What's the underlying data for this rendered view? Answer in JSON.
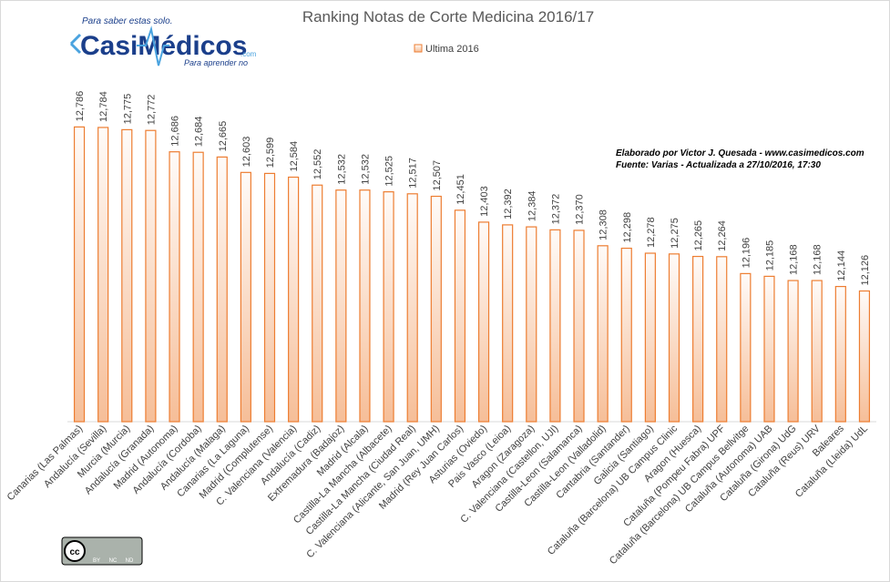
{
  "chart_data": {
    "type": "bar",
    "title": "Ranking Notas de Corte Medicina 2016/17",
    "annotations": [
      "Elaborado por Victor J. Quesada - www.casimedicos.com",
      "Fuente:  Varias - Actualizada a 27/10/2016, 17:30"
    ],
    "categories": [
      "Canarias (Las Palmas)",
      "Andalucía (Sevilla)",
      "Murcia (Murcia)",
      "Andalucía (Granada)",
      "Madrid (Autonoma)",
      "Andalucía (Cordoba)",
      "Andalucía (Malaga)",
      "Canarias (La Laguna)",
      "Madrid (Complutense)",
      "C. Valenciana (Valencia)",
      "Andalucía (Cadiz)",
      "Extremadura (Badajoz)",
      "Madrid (Alcala)",
      "Castilla-La Mancha (Albacete)",
      "Castilla-La Mancha (Ciudad Real)",
      "C. Valenciana (Alicante, San Juan, UMH)",
      "Madrid (Rey Juan Carlos)",
      "Asturias (Oviedo)",
      "Pais Vasco (Leioa)",
      "Aragon (Zaragoza)",
      "C. Valenciana (Castellon, UJI)",
      "Castilla-Leon (Salamanca)",
      "Castilla-Leon (Valladolid)",
      "Cantabria (Santander)",
      "Galicia (Santiago)",
      "Cataluña (Barcelona) UB Campus Clinic",
      "Aragon (Huesca)",
      "Cataluña (Pompeu Fabra) UPF",
      "Cataluña (Barcelona) UB Campus Bellvitge",
      "Cataluña (Autonoma) UAB",
      "Cataluña (Girona) UdG",
      "Cataluña (Reus) URV",
      "Baleares",
      "Cataluña (Lleida) UdL"
    ],
    "series": [
      {
        "name": "Ultima 2016",
        "color": "#ed7d31",
        "values": [
          12.786,
          12.784,
          12.775,
          12.772,
          12.686,
          12.684,
          12.665,
          12.603,
          12.599,
          12.584,
          12.552,
          12.532,
          12.532,
          12.525,
          12.517,
          12.507,
          12.451,
          12.403,
          12.392,
          12.384,
          12.372,
          12.37,
          12.308,
          12.298,
          12.278,
          12.275,
          12.265,
          12.264,
          12.196,
          12.185,
          12.168,
          12.168,
          12.144,
          12.126
        ],
        "value_labels": [
          "12,786",
          "12,784",
          "12,775",
          "12,772",
          "12,686",
          "12,684",
          "12,665",
          "12,603",
          "12,599",
          "12,584",
          "12,552",
          "12,532",
          "12,532",
          "12,525",
          "12,517",
          "12,507",
          "12,451",
          "12,403",
          "12,392",
          "12,384",
          "12,372",
          "12,370",
          "12,308",
          "12,298",
          "12,278",
          "12,275",
          "12,265",
          "12,264",
          "12,196",
          "12,185",
          "12,168",
          "12,168",
          "12,144",
          "12,126"
        ]
      }
    ],
    "ylim": [
      11.6,
      13.0
    ],
    "legend": "top"
  },
  "logo": {
    "tagline_top": "Para saber estas solo.",
    "name": "CasiMédicos",
    "tagline_bottom": "Para aprender no",
    "domain": ".com"
  },
  "license": {
    "badge": "cc",
    "terms": [
      "BY",
      "NC",
      "ND"
    ]
  }
}
